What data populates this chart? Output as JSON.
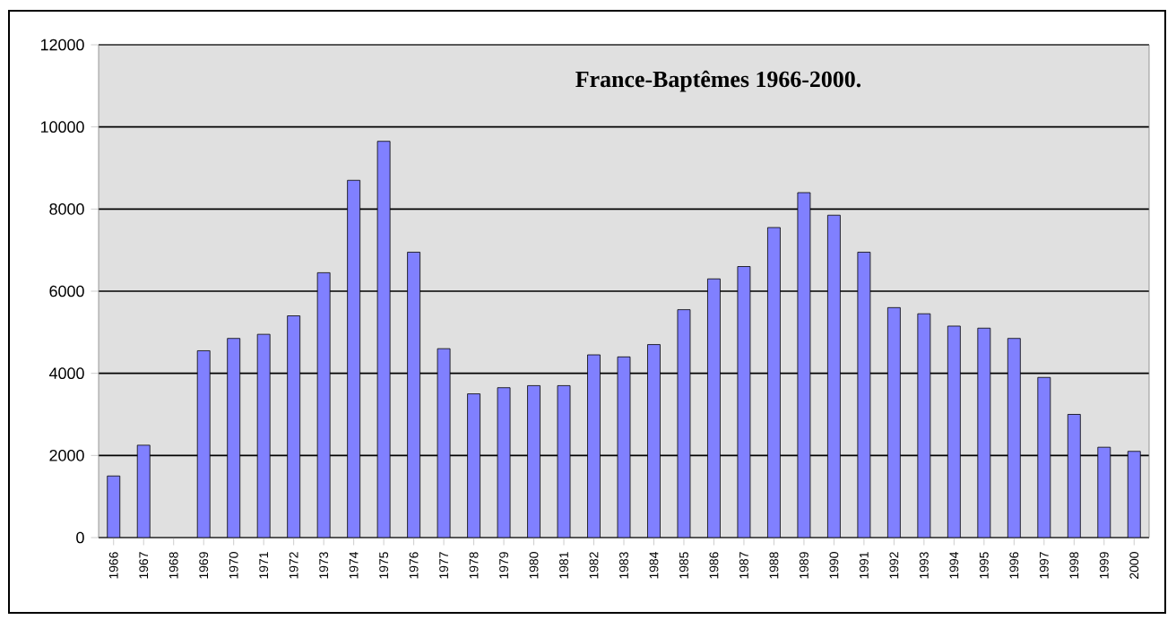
{
  "chart_data": {
    "type": "bar",
    "title": "France-Baptêmes 1966-2000.",
    "categories": [
      "1966",
      "1967",
      "1968",
      "1969",
      "1970",
      "1971",
      "1972",
      "1973",
      "1974",
      "1975",
      "1976",
      "1977",
      "1978",
      "1979",
      "1980",
      "1981",
      "1982",
      "1983",
      "1984",
      "1985",
      "1986",
      "1987",
      "1988",
      "1989",
      "1990",
      "1991",
      "1992",
      "1993",
      "1994",
      "1995",
      "1996",
      "1997",
      "1998",
      "1999",
      "2000"
    ],
    "values": [
      1500,
      2250,
      null,
      4550,
      4850,
      4950,
      5400,
      6450,
      8700,
      9650,
      6950,
      4600,
      3500,
      3650,
      3700,
      3700,
      4450,
      4400,
      4700,
      5550,
      6300,
      6600,
      7550,
      8400,
      7850,
      6950,
      5600,
      5450,
      5150,
      5100,
      4850,
      3900,
      3000,
      2200,
      2100
    ],
    "color": "#8080ff",
    "ylim": [
      0,
      12000
    ],
    "yticks": [
      0,
      2000,
      4000,
      6000,
      8000,
      10000,
      12000
    ],
    "grid": "y"
  }
}
